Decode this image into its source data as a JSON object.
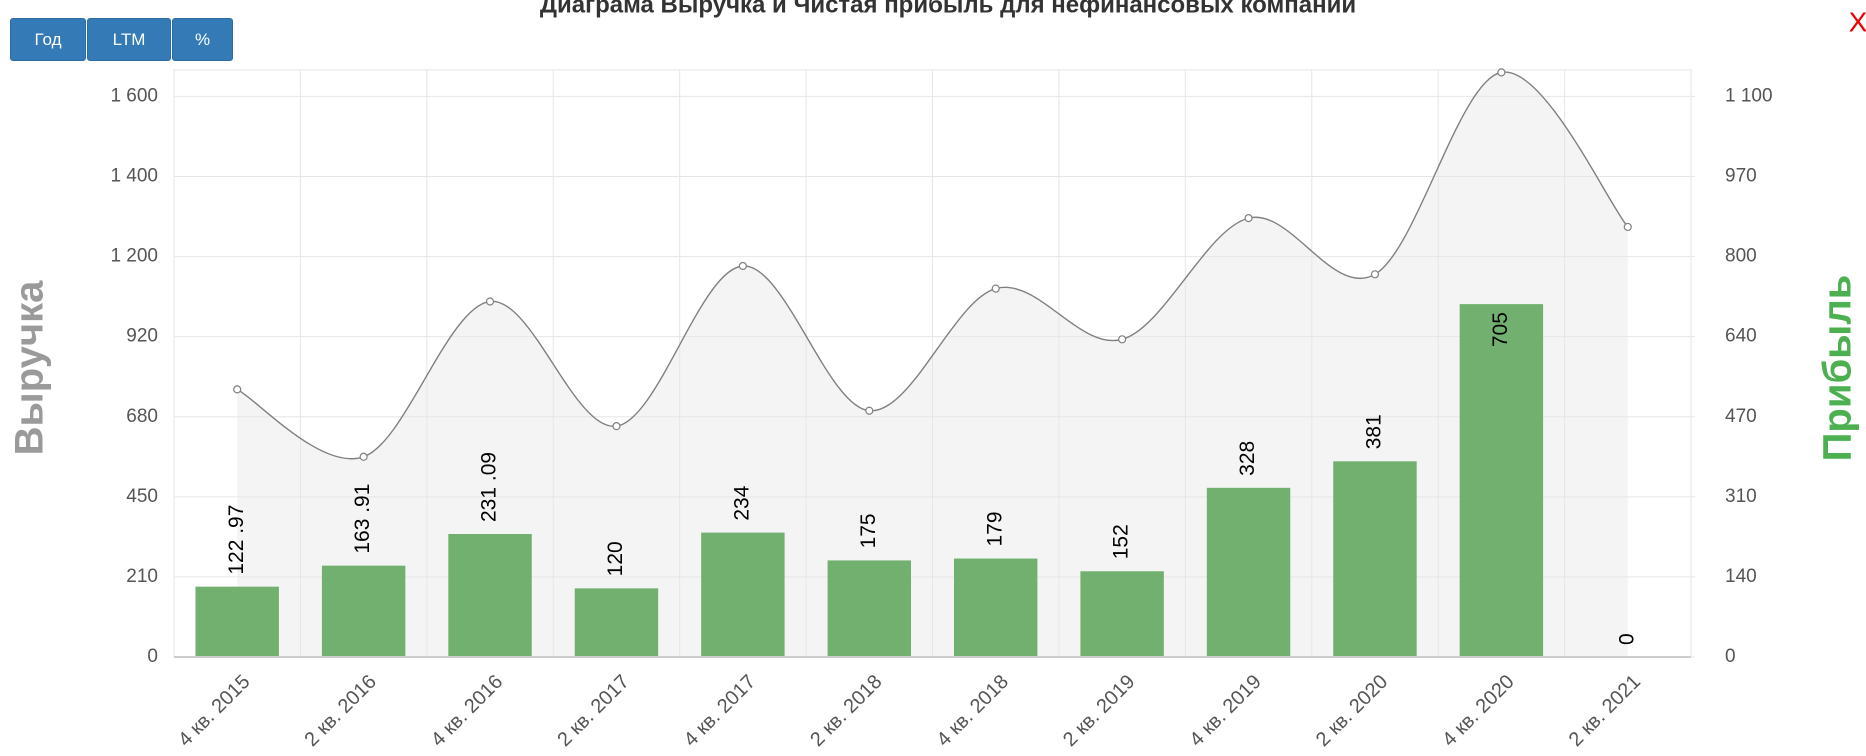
{
  "chart_data": {
    "type": "bar",
    "title": "Диаграма Выручка и Чистая прибыль для нефинансовых компаний",
    "buttons": [
      "Год",
      "LTM",
      "%"
    ],
    "close_label": "X",
    "ylabel": "Выручка",
    "y2label": "Прибыль",
    "categories": [
      "4 кв. 2015",
      "2 кв. 2016",
      "4 кв. 2016",
      "2 кв. 2017",
      "4 кв. 2017",
      "2 кв. 2018",
      "4 кв. 2018",
      "2 кв. 2019",
      "4 кв. 2019",
      "2 кв. 2020",
      "4 кв. 2020",
      "2 кв. 2021"
    ],
    "series": [
      {
        "type": "line",
        "color": "#808080",
        "axis": "y",
        "values": [
          762,
          565,
          1043,
          653,
          1167,
          698,
          1088,
          912,
          1296,
          1138,
          1660,
          1274
        ]
      },
      {
        "type": "bar",
        "color": "#71b06f",
        "axis": "y2",
        "values": [
          122.97,
          163.91,
          231.09,
          120,
          234,
          175,
          179,
          152,
          328,
          381,
          705,
          0
        ],
        "value_labels": [
          "122 .97",
          "163 .91",
          "231 .09",
          "120",
          "234",
          "175",
          "179",
          "152",
          "328",
          "381",
          "705",
          "0"
        ]
      }
    ],
    "ylim": [
      0,
      1665
    ],
    "yticks": [
      0,
      210,
      450,
      680,
      920,
      {
        "value": 1200,
        "label": "1 200"
      },
      {
        "value": 1400,
        "label": "1 400"
      },
      {
        "value": 1600,
        "label": "1 600"
      }
    ],
    "y2lim": [
      0,
      1143
    ],
    "y2ticks": [
      0,
      140,
      310,
      470,
      640,
      800,
      970,
      {
        "value": 1100,
        "label": "1 100"
      }
    ],
    "grid": true
  }
}
